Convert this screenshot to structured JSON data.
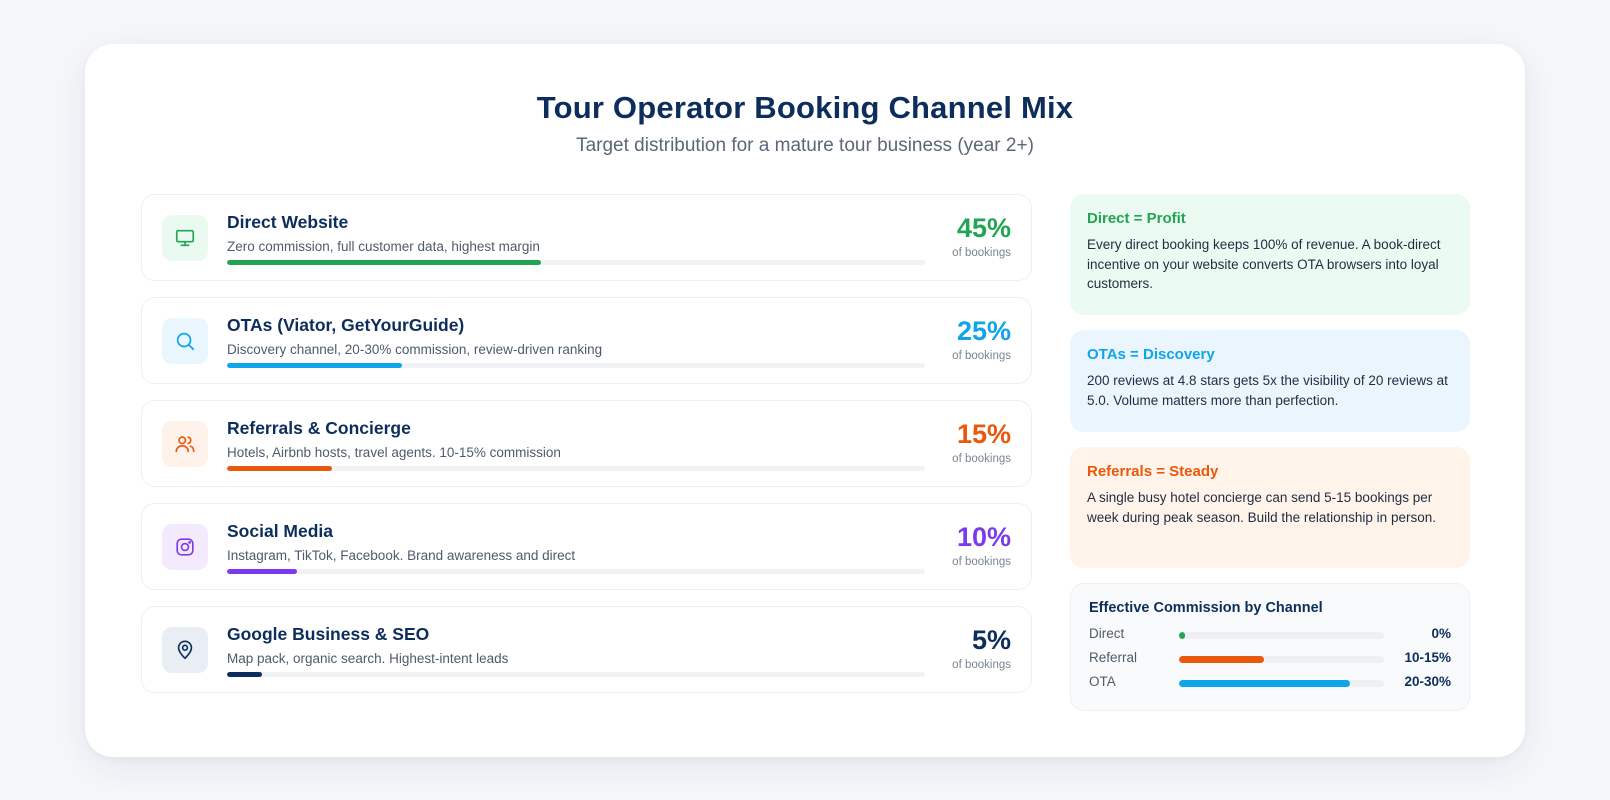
{
  "header": {
    "title": "Tour Operator Booking Channel Mix",
    "subtitle": "Target distribution for a mature tour business (year 2+)"
  },
  "colors": {
    "direct": "#22a552",
    "ota": "#0ea5e9",
    "referral": "#ea580c",
    "social": "#7c3aed",
    "google": "#0d2d5c"
  },
  "channels": [
    {
      "name": "Direct Website",
      "description": "Zero commission, full customer data, highest margin",
      "percent_label": "45%",
      "unit": "of bookings",
      "icon": "monitor-icon"
    },
    {
      "name": "OTAs (Viator, GetYourGuide)",
      "description": "Discovery channel, 20-30% commission, review-driven ranking",
      "percent_label": "25%",
      "unit": "of bookings",
      "icon": "search-icon"
    },
    {
      "name": "Referrals & Concierge",
      "description": "Hotels, Airbnb hosts, travel agents. 10-15% commission",
      "percent_label": "15%",
      "unit": "of bookings",
      "icon": "users-icon"
    },
    {
      "name": "Social Media",
      "description": "Instagram, TikTok, Facebook. Brand awareness and direct",
      "percent_label": "10%",
      "unit": "of bookings",
      "icon": "instagram-icon"
    },
    {
      "name": "Google Business & SEO",
      "description": "Map pack, organic search. Highest-intent leads",
      "percent_label": "5%",
      "unit": "of bookings",
      "icon": "map-pin-icon"
    }
  ],
  "notes": [
    {
      "title": "Direct = Profit",
      "body": "Every direct booking keeps 100% of revenue. A book-direct incentive on your website converts OTA browsers into loyal customers."
    },
    {
      "title": "OTAs = Discovery",
      "body": "200 reviews at 4.8 stars gets 5x the visibility of 20 reviews at 5.0. Volume matters more than perfection."
    },
    {
      "title": "Referrals = Steady",
      "body": "A single busy hotel concierge can send 5-15 bookings per week during peak season. Build the relationship in person."
    }
  ],
  "commission": {
    "title": "Effective Commission by Channel",
    "rows": [
      {
        "label": "Direct",
        "value_label": "0%"
      },
      {
        "label": "Referral",
        "value_label": "10-15%"
      },
      {
        "label": "OTA",
        "value_label": "20-30%"
      }
    ]
  },
  "chart_data": [
    {
      "type": "bar",
      "title": "Tour Operator Booking Channel Mix",
      "categories": [
        "Direct Website",
        "OTAs (Viator, GetYourGuide)",
        "Referrals & Concierge",
        "Social Media",
        "Google Business & SEO"
      ],
      "values": [
        45,
        25,
        15,
        10,
        5
      ],
      "ylabel": "of bookings",
      "ylim": [
        0,
        100
      ]
    },
    {
      "type": "bar",
      "title": "Effective Commission by Channel",
      "categories": [
        "Direct",
        "Referral",
        "OTA"
      ],
      "values": [
        0,
        12.5,
        25
      ],
      "value_labels": [
        "0%",
        "10-15%",
        "20-30%"
      ],
      "ylim": [
        0,
        30
      ]
    }
  ]
}
